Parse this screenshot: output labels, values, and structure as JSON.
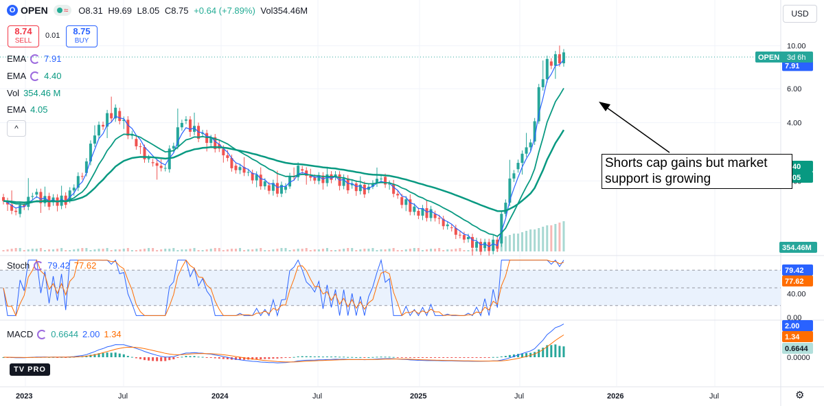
{
  "header": {
    "symbol": "OPEN",
    "logo_letter": "O",
    "open": "O8.31",
    "high": "H9.69",
    "low": "L8.05",
    "close": "C8.75",
    "change": "+0.64 (+7.89%)",
    "volume": "Vol354.46M"
  },
  "trade": {
    "sell_price": "8.74",
    "sell_label": "SELL",
    "spread": "0.01",
    "buy_price": "8.75",
    "buy_label": "BUY"
  },
  "indicators": [
    {
      "name": "EMA",
      "value": "7.91",
      "color": "#2962ff"
    },
    {
      "name": "EMA",
      "value": "4.40",
      "color": "#089981"
    },
    {
      "name": "Vol",
      "value": "354.46 M",
      "color": "#089981"
    },
    {
      "name": "EMA",
      "value": "4.05",
      "color": "#089981"
    }
  ],
  "collapse_icon": "chevron-up-icon",
  "currency": "USD",
  "annotation": "Shorts cap gains but market support is growing",
  "brand": "PRO",
  "settings_icon": "gear-icon",
  "chart_data": {
    "type": "candlestick",
    "x_ticks": [
      "2023",
      "Jul",
      "2024",
      "Jul",
      "2025",
      "Jul",
      "2026",
      "Jul"
    ],
    "price_scale": "log",
    "price_ticks": [
      "10.00",
      "6.00",
      "4.00",
      "2.00"
    ],
    "price_ylim": [
      0.85,
      13.5
    ],
    "last_price_tag": {
      "label": "OPEN",
      "countdown": "3d 6h",
      "price": 8.75
    },
    "right_labels": {
      "ema_fast": "7.91",
      "ema_slow_partial": "40",
      "ema_vol_partial": "05",
      "volume": "354.46M"
    },
    "candles_monthly_approx": [
      {
        "m": "2023-01",
        "o": 1.65,
        "h": 1.95,
        "l": 1.25,
        "c": 1.35
      },
      {
        "m": "2023-02",
        "o": 1.35,
        "h": 2.15,
        "l": 1.3,
        "c": 1.7
      },
      {
        "m": "2023-03",
        "o": 1.7,
        "h": 1.9,
        "l": 1.38,
        "c": 1.55
      },
      {
        "m": "2023-04",
        "o": 1.55,
        "h": 1.8,
        "l": 1.45,
        "c": 1.6
      },
      {
        "m": "2023-05",
        "o": 1.6,
        "h": 2.3,
        "l": 1.5,
        "c": 2.2
      },
      {
        "m": "2023-06",
        "o": 2.2,
        "h": 4.4,
        "l": 2.1,
        "c": 3.9
      },
      {
        "m": "2023-07",
        "o": 3.9,
        "h": 5.6,
        "l": 3.4,
        "c": 4.6
      },
      {
        "m": "2023-08",
        "o": 4.6,
        "h": 4.8,
        "l": 3.0,
        "c": 3.3
      },
      {
        "m": "2023-09",
        "o": 3.3,
        "h": 3.4,
        "l": 2.3,
        "c": 2.5
      },
      {
        "m": "2023-10",
        "o": 2.5,
        "h": 2.7,
        "l": 1.95,
        "c": 2.3
      },
      {
        "m": "2023-11",
        "o": 2.3,
        "h": 5.2,
        "l": 2.2,
        "c": 4.1
      },
      {
        "m": "2023-12",
        "o": 4.1,
        "h": 4.8,
        "l": 3.3,
        "c": 3.5
      },
      {
        "m": "2024-01",
        "o": 3.5,
        "h": 3.6,
        "l": 2.8,
        "c": 3.1
      },
      {
        "m": "2024-02",
        "o": 3.1,
        "h": 3.3,
        "l": 2.2,
        "c": 2.4
      },
      {
        "m": "2024-03",
        "o": 2.4,
        "h": 2.7,
        "l": 2.1,
        "c": 2.2
      },
      {
        "m": "2024-04",
        "o": 2.2,
        "h": 2.4,
        "l": 1.75,
        "c": 1.9
      },
      {
        "m": "2024-05",
        "o": 1.9,
        "h": 2.2,
        "l": 1.7,
        "c": 1.8
      },
      {
        "m": "2024-06",
        "o": 1.8,
        "h": 2.55,
        "l": 1.75,
        "c": 2.3
      },
      {
        "m": "2024-07",
        "o": 2.3,
        "h": 2.5,
        "l": 1.8,
        "c": 2.0
      },
      {
        "m": "2024-08",
        "o": 2.0,
        "h": 2.3,
        "l": 1.85,
        "c": 2.1
      },
      {
        "m": "2024-09",
        "o": 2.1,
        "h": 2.2,
        "l": 1.8,
        "c": 1.9
      },
      {
        "m": "2024-10",
        "o": 1.9,
        "h": 2.1,
        "l": 1.7,
        "c": 1.8
      },
      {
        "m": "2024-11",
        "o": 1.8,
        "h": 2.4,
        "l": 1.75,
        "c": 2.1
      },
      {
        "m": "2024-12",
        "o": 2.1,
        "h": 2.2,
        "l": 1.55,
        "c": 1.65
      },
      {
        "m": "2025-01",
        "o": 1.65,
        "h": 1.75,
        "l": 1.3,
        "c": 1.4
      },
      {
        "m": "2025-02",
        "o": 1.4,
        "h": 1.55,
        "l": 1.28,
        "c": 1.35
      },
      {
        "m": "2025-03",
        "o": 1.35,
        "h": 1.4,
        "l": 1.08,
        "c": 1.15
      },
      {
        "m": "2025-04",
        "o": 1.15,
        "h": 1.2,
        "l": 0.95,
        "c": 1.0
      },
      {
        "m": "2025-05",
        "o": 1.0,
        "h": 1.05,
        "l": 0.82,
        "c": 0.9
      },
      {
        "m": "2025-06",
        "o": 0.9,
        "h": 1.0,
        "l": 0.85,
        "c": 0.95
      },
      {
        "m": "2025-07",
        "o": 0.95,
        "h": 3.9,
        "l": 0.92,
        "c": 2.3
      },
      {
        "m": "2025-08",
        "o": 2.3,
        "h": 3.8,
        "l": 2.0,
        "c": 3.2
      },
      {
        "m": "2025-09",
        "o": 3.2,
        "h": 10.9,
        "l": 3.1,
        "c": 8.3
      },
      {
        "m": "2025-10",
        "o": 8.3,
        "h": 9.7,
        "l": 7.1,
        "c": 8.75
      }
    ],
    "stoch": {
      "name": "Stoch",
      "k": "79.42",
      "d": "77.62",
      "ticks": [
        "80.00",
        "40.00",
        "0.00"
      ],
      "band": [
        20,
        80
      ]
    },
    "macd": {
      "name": "MACD",
      "hist": "0.6644",
      "macd": "2.00",
      "signal": "1.34",
      "ticks": [
        "0.0000"
      ]
    },
    "colors": {
      "up": "#26a69a",
      "down": "#ef5350",
      "ema_fast": "#2962ff",
      "ema_slow": "#089981",
      "stoch_k": "#2962ff",
      "stoch_d": "#ff6d00"
    }
  }
}
